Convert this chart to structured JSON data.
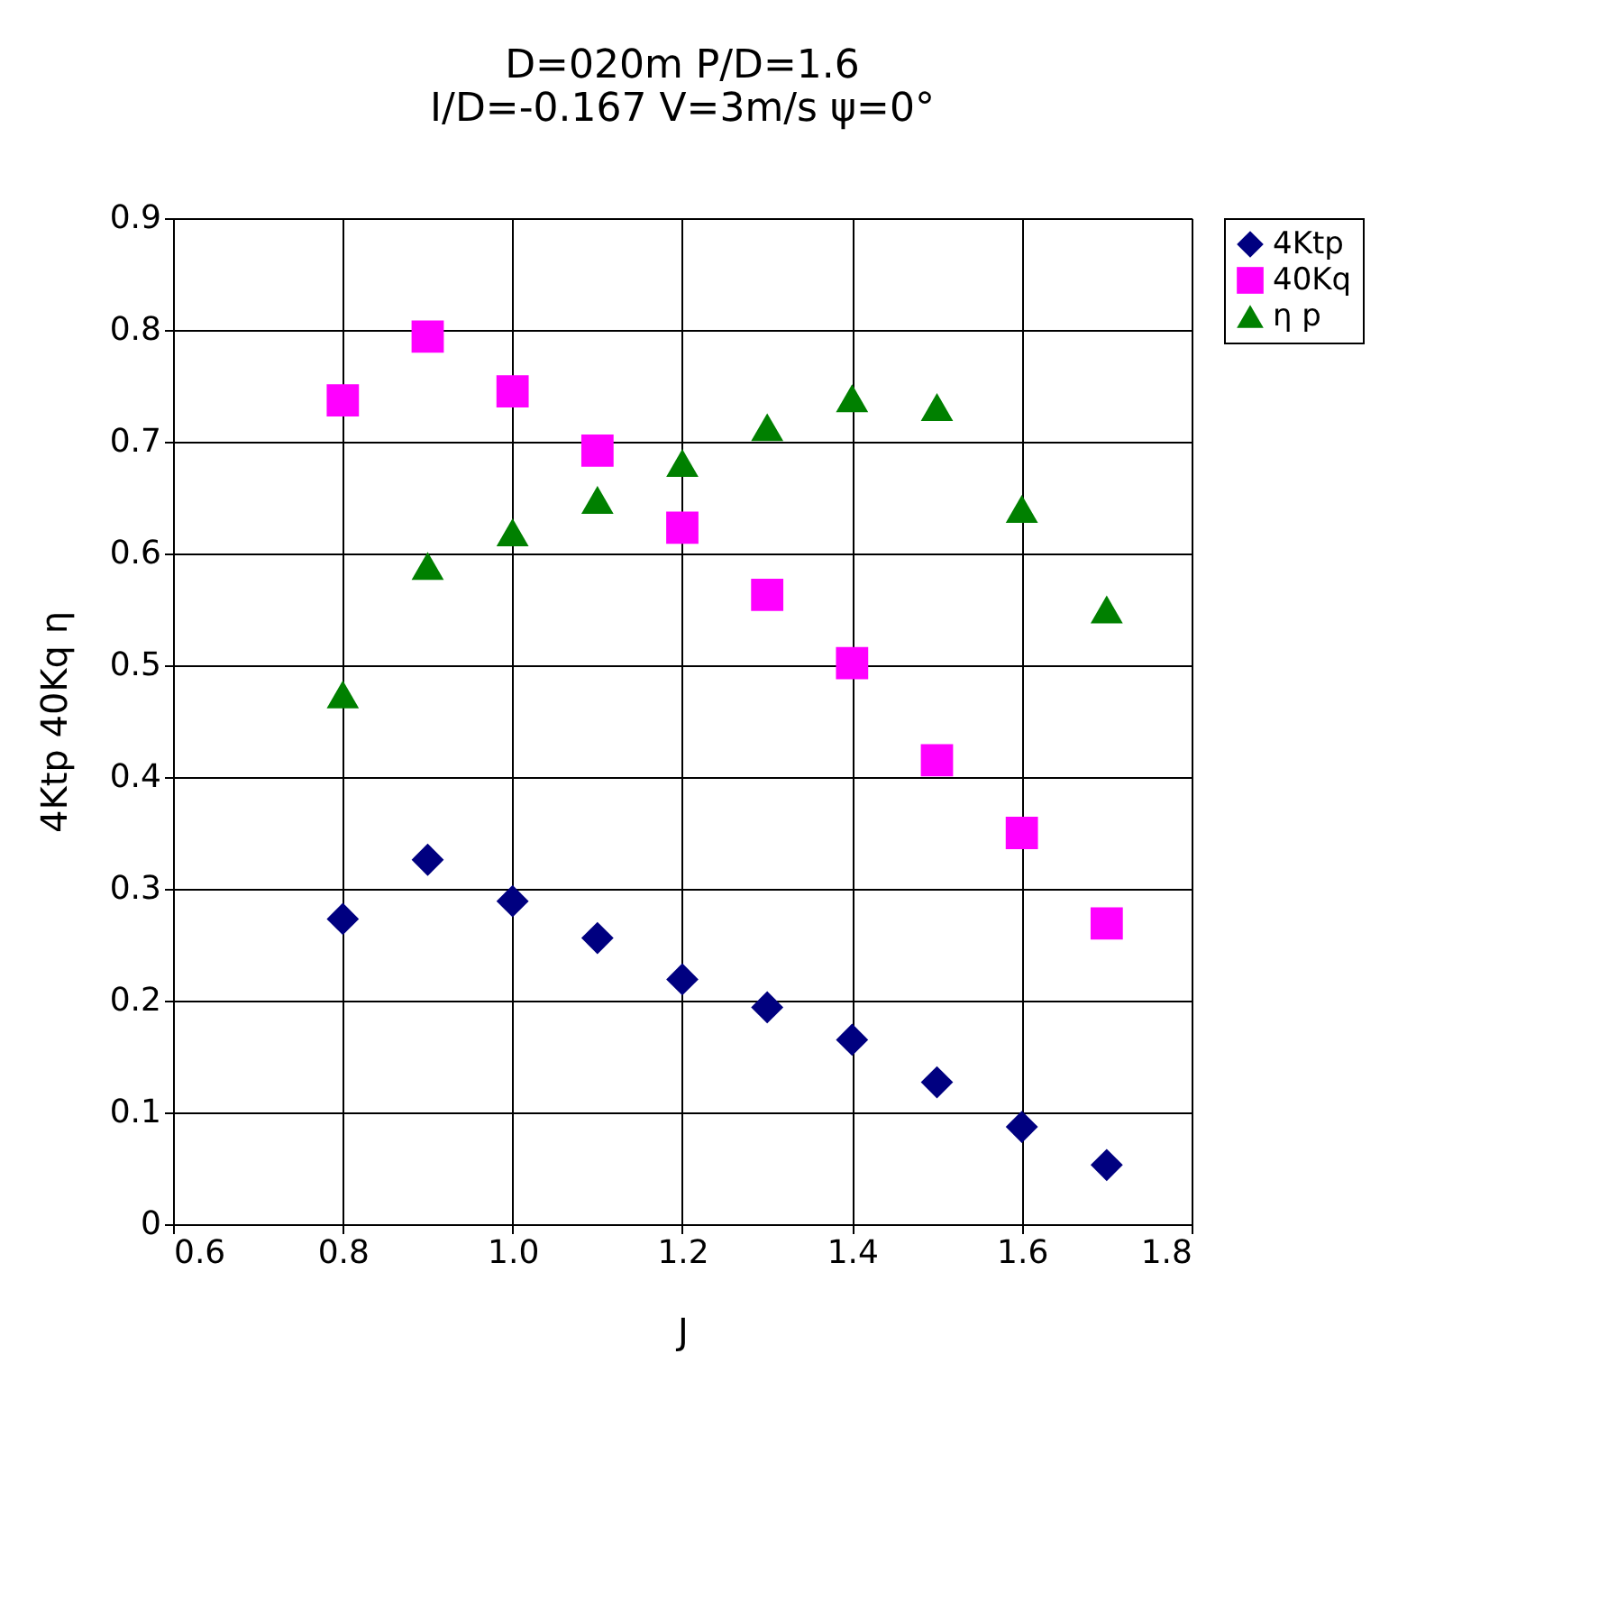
{
  "chart_data": {
    "type": "scatter",
    "title": [
      "D=020m P/D=1.6",
      "I/D=-0.167 V=3m/s  ψ=0°"
    ],
    "xlabel": "J",
    "ylabel": "4Ktp  40Kq  η",
    "x": [
      0.8,
      0.9,
      1.0,
      1.1,
      1.2,
      1.3,
      1.4,
      1.5,
      1.6,
      1.7
    ],
    "series": [
      {
        "name": "4Ktp",
        "color": "#000080",
        "marker": "diamond",
        "values": [
          0.273,
          0.326,
          0.289,
          0.256,
          0.219,
          0.194,
          0.165,
          0.127,
          0.087,
          0.053
        ]
      },
      {
        "name": "40Kq",
        "color": "#ff00ff",
        "marker": "square",
        "values": [
          0.737,
          0.794,
          0.745,
          0.692,
          0.623,
          0.563,
          0.502,
          0.415,
          0.35,
          0.269
        ]
      },
      {
        "name": "η p",
        "color": "#008000",
        "marker": "triangle",
        "values": [
          0.474,
          0.589,
          0.619,
          0.648,
          0.681,
          0.713,
          0.739,
          0.731,
          0.64,
          0.55
        ]
      }
    ],
    "xlim": [
      0.6,
      1.8
    ],
    "xticks": [
      {
        "value": 0.6,
        "label": "0.6"
      },
      {
        "value": 0.8,
        "label": "0.8"
      },
      {
        "value": 1.0,
        "label": "1.0"
      },
      {
        "value": 1.2,
        "label": "1.2"
      },
      {
        "value": 1.4,
        "label": "1.4"
      },
      {
        "value": 1.6,
        "label": "1.6"
      },
      {
        "value": 1.8,
        "label": "1.8"
      }
    ],
    "ylim": [
      0,
      0.9
    ],
    "yticks": [
      {
        "value": 0,
        "label": "0"
      },
      0.1,
      0.2,
      0.3,
      0.4,
      0.5,
      0.6,
      0.7,
      0.8,
      0.9
    ],
    "grid": true,
    "legend": "right"
  }
}
